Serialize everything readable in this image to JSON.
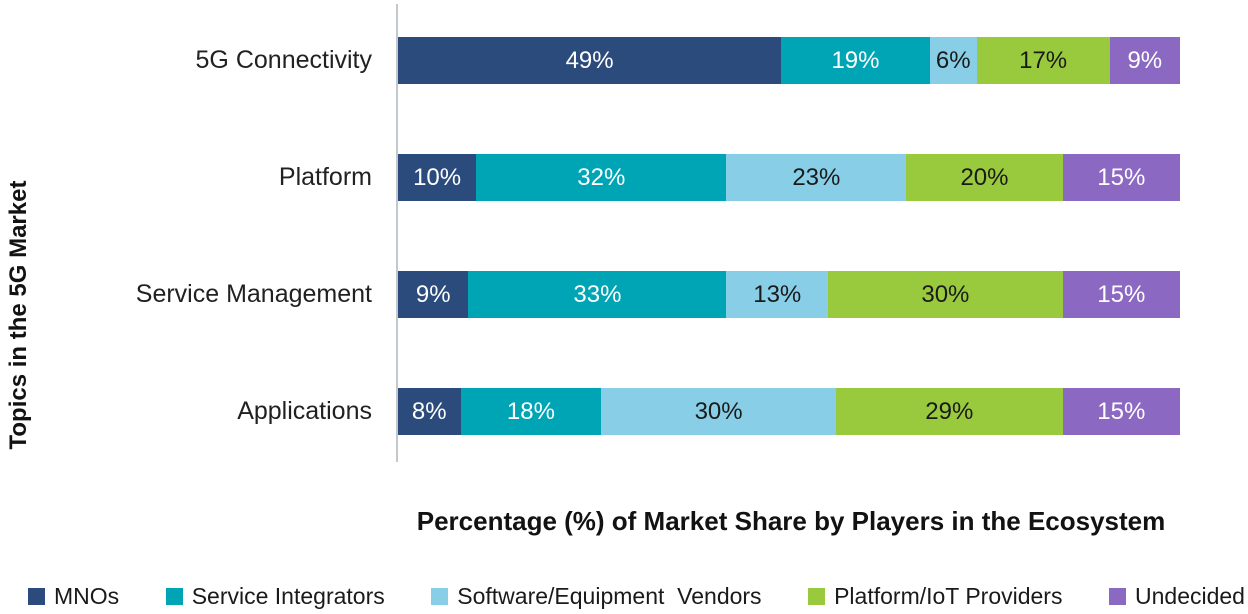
{
  "chart_data": {
    "type": "bar",
    "orientation": "horizontal",
    "stacked": true,
    "title": "",
    "xlabel": "Percentage (%) of Market Share by Players in the Ecosystem",
    "ylabel": "Topics in the 5G Market",
    "xlim": [
      0,
      100
    ],
    "grid": false,
    "legend_position": "bottom",
    "value_suffix": "%",
    "categories": [
      "5G Connectivity",
      "Platform",
      "Service Management",
      "Applications"
    ],
    "series": [
      {
        "name": "MNOs",
        "color": "#2a4b7c",
        "label_color": "#ffffff",
        "values": [
          49,
          10,
          9,
          8
        ]
      },
      {
        "name": "Service Integrators",
        "color": "#00a5b5",
        "label_color": "#ffffff",
        "values": [
          19,
          32,
          33,
          18
        ]
      },
      {
        "name": "Software/Equipment  Vendors",
        "color": "#87cee6",
        "label_color": "#1a1a1a",
        "values": [
          6,
          23,
          13,
          30
        ]
      },
      {
        "name": "Platform/IoT Providers",
        "color": "#99ca3d",
        "label_color": "#1a1a1a",
        "values": [
          17,
          20,
          30,
          29
        ]
      },
      {
        "name": "Undecided",
        "color": "#8b68c2",
        "label_color": "#ffffff",
        "values": [
          9,
          15,
          15,
          15
        ]
      }
    ]
  }
}
